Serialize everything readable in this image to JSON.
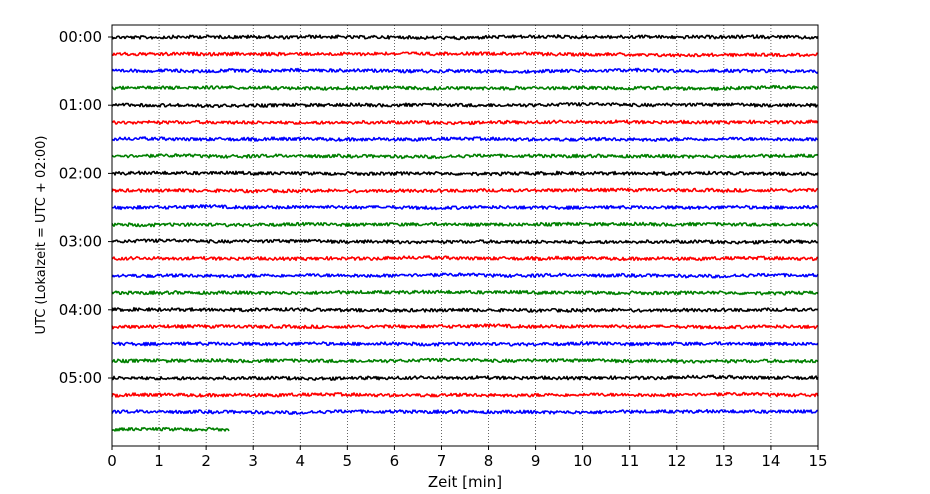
{
  "chart_data": {
    "type": "line",
    "title": "",
    "xlabel": "Zeit  [min]",
    "ylabel": "UTC (Lokalzeit = UTC + 02:00)",
    "xlim": [
      0,
      15
    ],
    "x_ticks": [
      "0",
      "1",
      "2",
      "3",
      "4",
      "5",
      "6",
      "7",
      "8",
      "9",
      "10",
      "11",
      "12",
      "13",
      "14",
      "15"
    ],
    "y_tick_labels": [
      "00:00",
      "01:00",
      "02:00",
      "03:00",
      "04:00",
      "05:00"
    ],
    "trace_minutes": 15,
    "grid": "vertical dotted",
    "legend": "none",
    "color_cycle": [
      "#000000",
      "#ff0000",
      "#0000ff",
      "#008000"
    ],
    "traces": [
      {
        "start": "00:00",
        "end_min": 15
      },
      {
        "start": "00:15",
        "end_min": 15
      },
      {
        "start": "00:30",
        "end_min": 15
      },
      {
        "start": "00:45",
        "end_min": 15
      },
      {
        "start": "01:00",
        "end_min": 15
      },
      {
        "start": "01:15",
        "end_min": 15
      },
      {
        "start": "01:30",
        "end_min": 15
      },
      {
        "start": "01:45",
        "end_min": 15
      },
      {
        "start": "02:00",
        "end_min": 15
      },
      {
        "start": "02:15",
        "end_min": 15
      },
      {
        "start": "02:30",
        "end_min": 15
      },
      {
        "start": "02:45",
        "end_min": 15
      },
      {
        "start": "03:00",
        "end_min": 15
      },
      {
        "start": "03:15",
        "end_min": 15
      },
      {
        "start": "03:30",
        "end_min": 15
      },
      {
        "start": "03:45",
        "end_min": 15
      },
      {
        "start": "04:00",
        "end_min": 15
      },
      {
        "start": "04:15",
        "end_min": 15
      },
      {
        "start": "04:30",
        "end_min": 15
      },
      {
        "start": "04:45",
        "end_min": 15
      },
      {
        "start": "05:00",
        "end_min": 15
      },
      {
        "start": "05:15",
        "end_min": 15
      },
      {
        "start": "05:30",
        "end_min": 15
      },
      {
        "start": "05:45",
        "end_min": 2.5
      }
    ]
  }
}
